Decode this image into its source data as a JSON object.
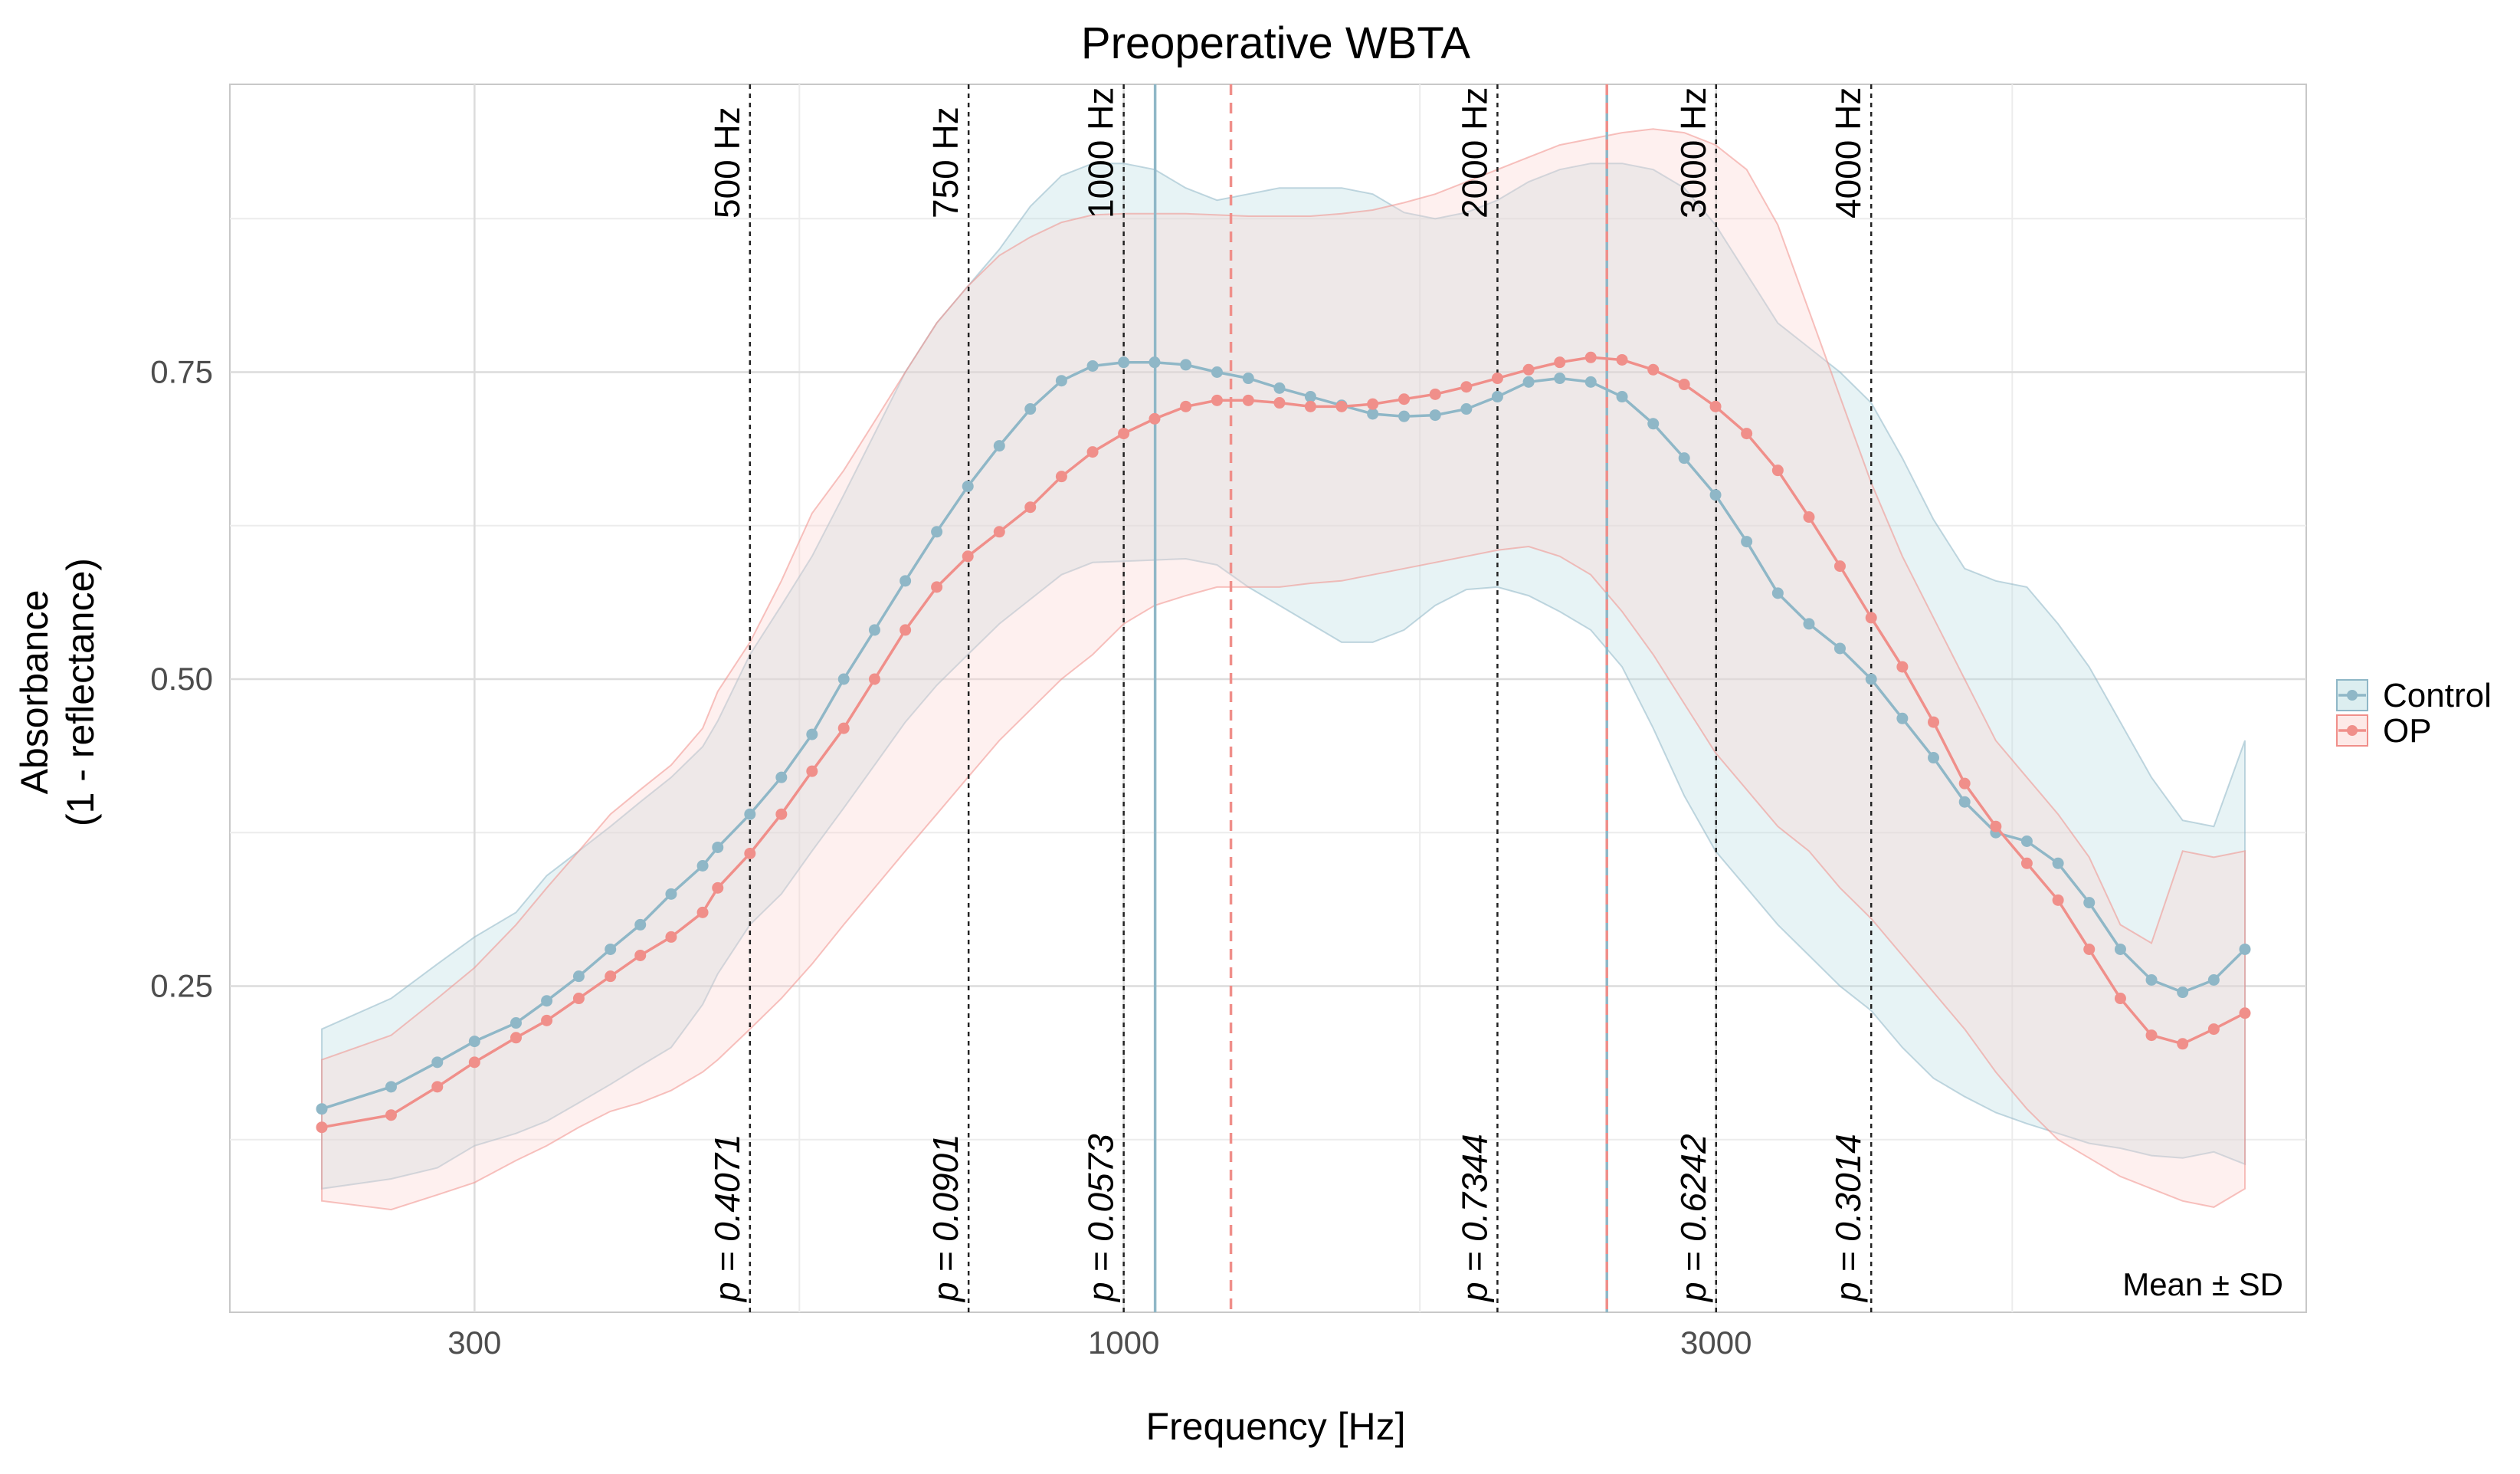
{
  "chart_data": {
    "type": "line",
    "title": "Preoperative WBTA",
    "xlabel": "Frequency [Hz]",
    "ylabel_lines": [
      "Absorbance",
      "(1 - reflectance)"
    ],
    "x_scale": "log",
    "xlim": [
      226,
      8000
    ],
    "ylim": [
      0.0,
      1.0
    ],
    "x_ticks": [
      300,
      1000,
      3000
    ],
    "x_tick_labels": [
      "300",
      "1000",
      "3000"
    ],
    "y_ticks": [
      0.25,
      0.5,
      0.75
    ],
    "y_tick_labels": [
      "0.25",
      "0.50",
      "0.75"
    ],
    "grid": true,
    "legend": {
      "position": "right",
      "entries": [
        "Control",
        "OP"
      ]
    },
    "annotation": "Mean ± SD",
    "band_freqs": [
      {
        "x": 500,
        "label": "500 Hz",
        "p": "p = 0.4071"
      },
      {
        "x": 750,
        "label": "750 Hz",
        "p": "p = 0.0901"
      },
      {
        "x": 1000,
        "label": "1000 Hz",
        "p": "p = 0.0573"
      },
      {
        "x": 2000,
        "label": "2000 Hz",
        "p": "p = 0.7344"
      },
      {
        "x": 3000,
        "label": "3000 Hz",
        "p": "p = 0.6242"
      },
      {
        "x": 4000,
        "label": "4000 Hz",
        "p": "p = 0.3014"
      }
    ],
    "peak_lines": [
      {
        "series": "Control",
        "x": 1060,
        "style": "solid"
      },
      {
        "series": "OP",
        "x": 1220,
        "style": "dashed"
      },
      {
        "series": "Control",
        "x": 2450,
        "style": "solid"
      },
      {
        "series": "OP",
        "x": 2450,
        "style": "dashed"
      }
    ],
    "x": [
      226,
      257,
      280,
      300,
      324,
      343,
      364,
      386,
      408,
      432,
      458,
      471,
      500,
      530,
      561,
      595,
      630,
      667,
      707,
      749,
      794,
      841,
      891,
      944,
      1000,
      1059,
      1122,
      1189,
      1260,
      1335,
      1414,
      1498,
      1587,
      1682,
      1782,
      1888,
      2000,
      2119,
      2245,
      2378,
      2520,
      2670,
      2828,
      2997,
      3175,
      3364,
      3564,
      3775,
      4000,
      4238,
      4490,
      4757,
      5040,
      5339,
      5657,
      5993,
      6350,
      6727,
      7127,
      7551,
      8000
    ],
    "series": [
      {
        "name": "Control",
        "color": "#8fb7c7",
        "band_color": "#b9dde1",
        "mean": [
          0.15,
          0.168,
          0.188,
          0.205,
          0.22,
          0.238,
          0.258,
          0.28,
          0.3,
          0.325,
          0.348,
          0.363,
          0.39,
          0.42,
          0.455,
          0.5,
          0.54,
          0.58,
          0.62,
          0.657,
          0.69,
          0.72,
          0.743,
          0.755,
          0.758,
          0.758,
          0.756,
          0.75,
          0.745,
          0.737,
          0.73,
          0.723,
          0.716,
          0.714,
          0.715,
          0.72,
          0.73,
          0.742,
          0.745,
          0.742,
          0.73,
          0.708,
          0.68,
          0.65,
          0.612,
          0.57,
          0.545,
          0.525,
          0.5,
          0.468,
          0.436,
          0.4,
          0.375,
          0.368,
          0.35,
          0.318,
          0.28,
          0.255,
          0.245,
          0.255,
          0.28
        ],
        "upper": [
          0.215,
          0.24,
          0.268,
          0.29,
          0.31,
          0.34,
          0.36,
          0.38,
          0.4,
          0.42,
          0.445,
          0.466,
          0.52,
          0.56,
          0.6,
          0.65,
          0.7,
          0.75,
          0.79,
          0.82,
          0.85,
          0.885,
          0.91,
          0.92,
          0.92,
          0.915,
          0.9,
          0.89,
          0.895,
          0.9,
          0.9,
          0.9,
          0.895,
          0.88,
          0.875,
          0.88,
          0.89,
          0.905,
          0.915,
          0.92,
          0.92,
          0.915,
          0.9,
          0.87,
          0.83,
          0.79,
          0.77,
          0.75,
          0.725,
          0.68,
          0.63,
          0.59,
          0.58,
          0.575,
          0.545,
          0.51,
          0.465,
          0.42,
          0.385,
          0.38,
          0.45
        ],
        "lower": [
          0.085,
          0.093,
          0.102,
          0.12,
          0.13,
          0.14,
          0.155,
          0.17,
          0.185,
          0.2,
          0.235,
          0.26,
          0.3,
          0.325,
          0.36,
          0.395,
          0.43,
          0.465,
          0.495,
          0.52,
          0.545,
          0.565,
          0.585,
          0.595,
          0.596,
          0.597,
          0.598,
          0.593,
          0.575,
          0.56,
          0.545,
          0.53,
          0.53,
          0.54,
          0.56,
          0.573,
          0.575,
          0.568,
          0.555,
          0.54,
          0.51,
          0.46,
          0.405,
          0.36,
          0.33,
          0.3,
          0.275,
          0.25,
          0.23,
          0.2,
          0.175,
          0.16,
          0.147,
          0.138,
          0.13,
          0.122,
          0.118,
          0.112,
          0.11,
          0.115,
          0.105
        ]
      },
      {
        "name": "OP",
        "color": "#f08f8a",
        "band_color": "#fbd3d0",
        "mean": [
          0.135,
          0.145,
          0.168,
          0.188,
          0.208,
          0.222,
          0.24,
          0.258,
          0.275,
          0.29,
          0.31,
          0.33,
          0.358,
          0.39,
          0.425,
          0.46,
          0.5,
          0.54,
          0.575,
          0.6,
          0.62,
          0.64,
          0.665,
          0.685,
          0.7,
          0.712,
          0.722,
          0.727,
          0.727,
          0.725,
          0.722,
          0.722,
          0.724,
          0.728,
          0.732,
          0.738,
          0.745,
          0.752,
          0.758,
          0.762,
          0.76,
          0.752,
          0.74,
          0.722,
          0.7,
          0.67,
          0.632,
          0.592,
          0.55,
          0.51,
          0.465,
          0.415,
          0.38,
          0.35,
          0.32,
          0.28,
          0.24,
          0.21,
          0.203,
          0.215,
          0.228
        ],
        "upper": [
          0.19,
          0.21,
          0.24,
          0.265,
          0.3,
          0.33,
          0.36,
          0.39,
          0.41,
          0.43,
          0.46,
          0.49,
          0.53,
          0.58,
          0.635,
          0.67,
          0.71,
          0.75,
          0.79,
          0.82,
          0.845,
          0.86,
          0.872,
          0.878,
          0.879,
          0.879,
          0.879,
          0.878,
          0.877,
          0.877,
          0.877,
          0.879,
          0.882,
          0.888,
          0.895,
          0.905,
          0.915,
          0.925,
          0.935,
          0.94,
          0.945,
          0.948,
          0.945,
          0.935,
          0.915,
          0.87,
          0.8,
          0.73,
          0.66,
          0.6,
          0.55,
          0.5,
          0.45,
          0.42,
          0.39,
          0.355,
          0.3,
          0.285,
          0.36,
          0.355,
          0.36
        ],
        "lower": [
          0.075,
          0.068,
          0.08,
          0.09,
          0.108,
          0.12,
          0.135,
          0.148,
          0.155,
          0.165,
          0.18,
          0.19,
          0.215,
          0.24,
          0.268,
          0.3,
          0.33,
          0.36,
          0.39,
          0.42,
          0.45,
          0.475,
          0.5,
          0.52,
          0.545,
          0.56,
          0.568,
          0.575,
          0.575,
          0.575,
          0.578,
          0.58,
          0.585,
          0.59,
          0.595,
          0.6,
          0.605,
          0.608,
          0.6,
          0.585,
          0.555,
          0.52,
          0.48,
          0.44,
          0.41,
          0.38,
          0.36,
          0.33,
          0.305,
          0.275,
          0.245,
          0.215,
          0.18,
          0.15,
          0.125,
          0.11,
          0.095,
          0.085,
          0.075,
          0.07,
          0.085
        ]
      }
    ]
  }
}
